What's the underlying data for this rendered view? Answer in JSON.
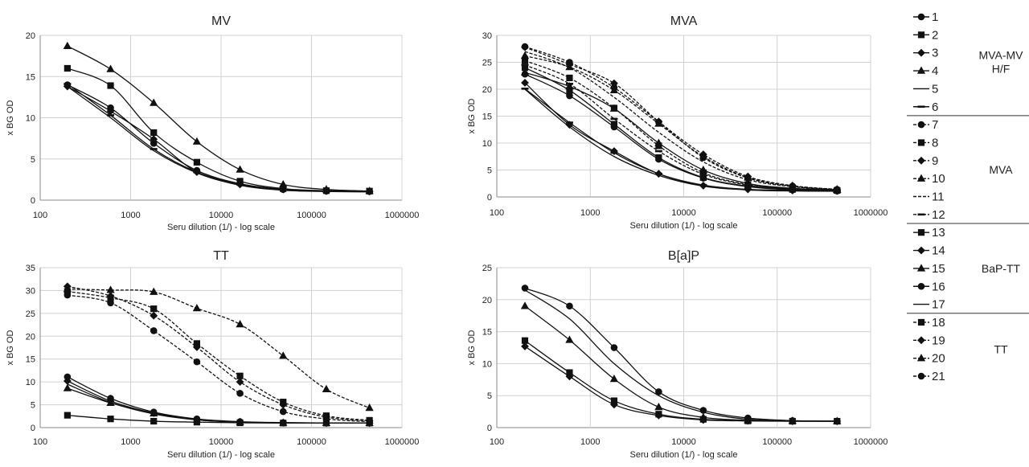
{
  "legend": {
    "groups": [
      {
        "label_lines": [
          "MVA-MV",
          "H/F"
        ],
        "items": [
          {
            "id": "1",
            "marker": "circle",
            "dash": "solid"
          },
          {
            "id": "2",
            "marker": "square",
            "dash": "solid"
          },
          {
            "id": "3",
            "marker": "diamond",
            "dash": "solid"
          },
          {
            "id": "4",
            "marker": "triangle",
            "dash": "solid"
          },
          {
            "id": "5",
            "marker": "none",
            "dash": "solid"
          },
          {
            "id": "6",
            "marker": "dash",
            "dash": "solid"
          }
        ]
      },
      {
        "label_lines": [
          "MVA"
        ],
        "items": [
          {
            "id": "7",
            "marker": "circle",
            "dash": "dashed"
          },
          {
            "id": "8",
            "marker": "square",
            "dash": "dashed"
          },
          {
            "id": "9",
            "marker": "diamond",
            "dash": "dashed"
          },
          {
            "id": "10",
            "marker": "triangle",
            "dash": "dashed"
          },
          {
            "id": "11",
            "marker": "none",
            "dash": "dashed"
          },
          {
            "id": "12",
            "marker": "dash",
            "dash": "dashed"
          }
        ]
      },
      {
        "label_lines": [
          "BaP-TT"
        ],
        "items": [
          {
            "id": "13",
            "marker": "square",
            "dash": "solid"
          },
          {
            "id": "14",
            "marker": "diamond",
            "dash": "solid"
          },
          {
            "id": "15",
            "marker": "triangle",
            "dash": "solid"
          },
          {
            "id": "16",
            "marker": "circle",
            "dash": "solid"
          },
          {
            "id": "17",
            "marker": "none",
            "dash": "solid"
          }
        ]
      },
      {
        "label_lines": [
          "TT"
        ],
        "items": [
          {
            "id": "18",
            "marker": "square",
            "dash": "dashed"
          },
          {
            "id": "19",
            "marker": "diamond",
            "dash": "dashed"
          },
          {
            "id": "20",
            "marker": "triangle",
            "dash": "dashed"
          },
          {
            "id": "21",
            "marker": "circle",
            "dash": "dashed"
          }
        ]
      }
    ]
  },
  "chart_data": [
    {
      "type": "line",
      "title": "MV",
      "xlabel": "Seru dilution (1/) - log scale",
      "ylabel": "x BG OD",
      "xscale": "log",
      "xlim": [
        100,
        1000000
      ],
      "ylim": [
        0,
        20
      ],
      "yticks": [
        0,
        5,
        10,
        15,
        20
      ],
      "xticks": [
        100,
        1000,
        10000,
        100000,
        1000000
      ],
      "x": [
        200,
        600,
        1800,
        5400,
        16200,
        48600,
        145800,
        437400
      ],
      "series": [
        {
          "ref": "1",
          "marker": "circle",
          "dash": "solid",
          "values": [
            14.0,
            11.2,
            6.9,
            3.6,
            2.0,
            1.3,
            1.1,
            1.05
          ]
        },
        {
          "ref": "2",
          "marker": "square",
          "dash": "solid",
          "values": [
            16.0,
            13.9,
            8.2,
            4.6,
            2.3,
            1.4,
            1.15,
            1.1
          ]
        },
        {
          "ref": "3",
          "marker": "diamond",
          "dash": "solid",
          "values": [
            13.8,
            10.8,
            7.4,
            3.4,
            1.9,
            1.3,
            1.1,
            1.05
          ]
        },
        {
          "ref": "4",
          "marker": "triangle",
          "dash": "solid",
          "values": [
            18.7,
            15.9,
            11.8,
            7.1,
            3.7,
            1.9,
            1.3,
            1.1
          ]
        },
        {
          "ref": "5",
          "marker": "none",
          "dash": "solid",
          "values": [
            13.8,
            10.0,
            6.0,
            3.3,
            1.8,
            1.2,
            1.05,
            1.0
          ]
        },
        {
          "ref": "6",
          "marker": "dash",
          "dash": "solid",
          "values": [
            14.1,
            10.3,
            6.2,
            3.4,
            1.9,
            1.25,
            1.1,
            1.05
          ]
        }
      ]
    },
    {
      "type": "line",
      "title": "MVA",
      "xlabel": "Seru dilution (1/) - log scale",
      "ylabel": "x BG OD",
      "xscale": "log",
      "xlim": [
        100,
        1000000
      ],
      "ylim": [
        0,
        30
      ],
      "yticks": [
        0,
        5,
        10,
        15,
        20,
        25,
        30
      ],
      "xticks": [
        100,
        1000,
        10000,
        100000,
        1000000
      ],
      "x": [
        200,
        600,
        1800,
        5400,
        16200,
        48600,
        145800,
        437400
      ],
      "series": [
        {
          "ref": "1",
          "marker": "circle",
          "dash": "solid",
          "values": [
            22.8,
            18.8,
            13.0,
            7.0,
            3.5,
            1.9,
            1.3,
            1.1
          ]
        },
        {
          "ref": "2",
          "marker": "square",
          "dash": "solid",
          "values": [
            24.0,
            19.8,
            13.5,
            7.3,
            3.6,
            2.0,
            1.4,
            1.2
          ]
        },
        {
          "ref": "3",
          "marker": "diamond",
          "dash": "solid",
          "values": [
            21.2,
            13.4,
            8.5,
            4.3,
            2.1,
            1.4,
            1.2,
            1.1
          ]
        },
        {
          "ref": "4",
          "marker": "triangle",
          "dash": "solid",
          "values": [
            23.1,
            20.5,
            16.4,
            10.0,
            5.0,
            2.5,
            1.6,
            1.3
          ]
        },
        {
          "ref": "5",
          "marker": "none",
          "dash": "solid",
          "values": [
            20.0,
            13.0,
            7.5,
            4.0,
            2.0,
            1.3,
            1.1,
            1.05
          ]
        },
        {
          "ref": "6",
          "marker": "dash",
          "dash": "solid",
          "values": [
            20.1,
            13.8,
            8.2,
            4.3,
            2.2,
            1.4,
            1.2,
            1.1
          ]
        },
        {
          "ref": "7",
          "marker": "circle",
          "dash": "dashed",
          "values": [
            27.9,
            25.0,
            20.3,
            13.9,
            7.3,
            3.5,
            2.0,
            1.4
          ]
        },
        {
          "ref": "8",
          "marker": "square",
          "dash": "dashed",
          "values": [
            25.3,
            22.1,
            16.5,
            9.5,
            4.5,
            2.3,
            1.5,
            1.2
          ]
        },
        {
          "ref": "9",
          "marker": "diamond",
          "dash": "dashed",
          "values": [
            27.8,
            24.6,
            21.1,
            14.0,
            7.9,
            3.8,
            2.1,
            1.4
          ]
        },
        {
          "ref": "10",
          "marker": "triangle",
          "dash": "dashed",
          "values": [
            26.2,
            24.1,
            19.8,
            13.6,
            7.5,
            3.6,
            2.0,
            1.4
          ]
        },
        {
          "ref": "11",
          "marker": "none",
          "dash": "dashed",
          "values": [
            27.0,
            24.0,
            18.5,
            12.0,
            6.5,
            3.2,
            1.9,
            1.3
          ]
        },
        {
          "ref": "12",
          "marker": "dash",
          "dash": "dashed",
          "values": [
            24.5,
            21.0,
            14.5,
            8.5,
            4.2,
            2.2,
            1.5,
            1.2
          ]
        }
      ]
    },
    {
      "type": "line",
      "title": "TT",
      "xlabel": "Seru dilution (1/) - log scale",
      "ylabel": "x BG OD",
      "xscale": "log",
      "xlim": [
        100,
        1000000
      ],
      "ylim": [
        0,
        35
      ],
      "yticks": [
        0,
        5,
        10,
        15,
        20,
        25,
        30,
        35
      ],
      "xticks": [
        100,
        1000,
        10000,
        100000,
        1000000
      ],
      "x": [
        200,
        600,
        1800,
        5400,
        16200,
        48600,
        145800,
        437400
      ],
      "series": [
        {
          "ref": "13",
          "marker": "square",
          "dash": "solid",
          "values": [
            2.7,
            1.9,
            1.4,
            1.2,
            1.05,
            1.0,
            1.0,
            1.0
          ]
        },
        {
          "ref": "14",
          "marker": "diamond",
          "dash": "solid",
          "values": [
            10.2,
            5.8,
            3.2,
            1.8,
            1.2,
            1.05,
            1.0,
            1.0
          ]
        },
        {
          "ref": "15",
          "marker": "triangle",
          "dash": "solid",
          "values": [
            8.6,
            5.4,
            3.1,
            1.7,
            1.2,
            1.05,
            1.0,
            1.0
          ]
        },
        {
          "ref": "16",
          "marker": "circle",
          "dash": "solid",
          "values": [
            11.1,
            6.4,
            3.4,
            1.9,
            1.3,
            1.1,
            1.0,
            1.0
          ]
        },
        {
          "ref": "17",
          "marker": "none",
          "dash": "solid",
          "values": [
            9.5,
            5.5,
            3.0,
            1.7,
            1.2,
            1.05,
            1.0,
            1.0
          ]
        },
        {
          "ref": "18",
          "marker": "square",
          "dash": "dashed",
          "values": [
            29.8,
            28.4,
            26.0,
            18.4,
            11.3,
            5.6,
            2.6,
            1.6
          ]
        },
        {
          "ref": "19",
          "marker": "diamond",
          "dash": "dashed",
          "values": [
            30.9,
            28.8,
            24.5,
            17.6,
            10.0,
            5.0,
            2.3,
            1.5
          ]
        },
        {
          "ref": "20",
          "marker": "triangle",
          "dash": "dashed",
          "values": [
            30.3,
            30.1,
            29.7,
            26.1,
            22.6,
            15.7,
            8.4,
            4.3
          ]
        },
        {
          "ref": "21",
          "marker": "circle",
          "dash": "dashed",
          "values": [
            29.0,
            27.3,
            21.2,
            14.4,
            7.5,
            3.5,
            1.9,
            1.3
          ]
        }
      ]
    },
    {
      "type": "line",
      "title": "B[a]P",
      "xlabel": "Seru dilution (1/) - log scale",
      "ylabel": "x BG OD",
      "xscale": "log",
      "xlim": [
        100,
        1000000
      ],
      "ylim": [
        0,
        25
      ],
      "yticks": [
        0,
        5,
        10,
        15,
        20,
        25
      ],
      "xticks": [
        100,
        1000,
        10000,
        100000,
        1000000
      ],
      "x": [
        200,
        600,
        1800,
        5400,
        16200,
        48600,
        145800,
        437400
      ],
      "series": [
        {
          "ref": "13",
          "marker": "square",
          "dash": "solid",
          "values": [
            13.6,
            8.6,
            4.2,
            2.1,
            1.3,
            1.05,
            1.0,
            1.0
          ]
        },
        {
          "ref": "14",
          "marker": "diamond",
          "dash": "solid",
          "values": [
            12.7,
            8.0,
            3.6,
            1.9,
            1.2,
            1.05,
            1.0,
            1.0
          ]
        },
        {
          "ref": "15",
          "marker": "triangle",
          "dash": "solid",
          "values": [
            19.0,
            13.7,
            7.6,
            3.2,
            1.6,
            1.15,
            1.05,
            1.0
          ]
        },
        {
          "ref": "16",
          "marker": "circle",
          "dash": "solid",
          "values": [
            21.8,
            19.0,
            12.5,
            5.6,
            2.7,
            1.5,
            1.1,
            1.0
          ]
        },
        {
          "ref": "17",
          "marker": "none",
          "dash": "solid",
          "values": [
            21.5,
            17.0,
            10.0,
            5.0,
            2.4,
            1.3,
            1.05,
            1.0
          ]
        }
      ]
    }
  ]
}
